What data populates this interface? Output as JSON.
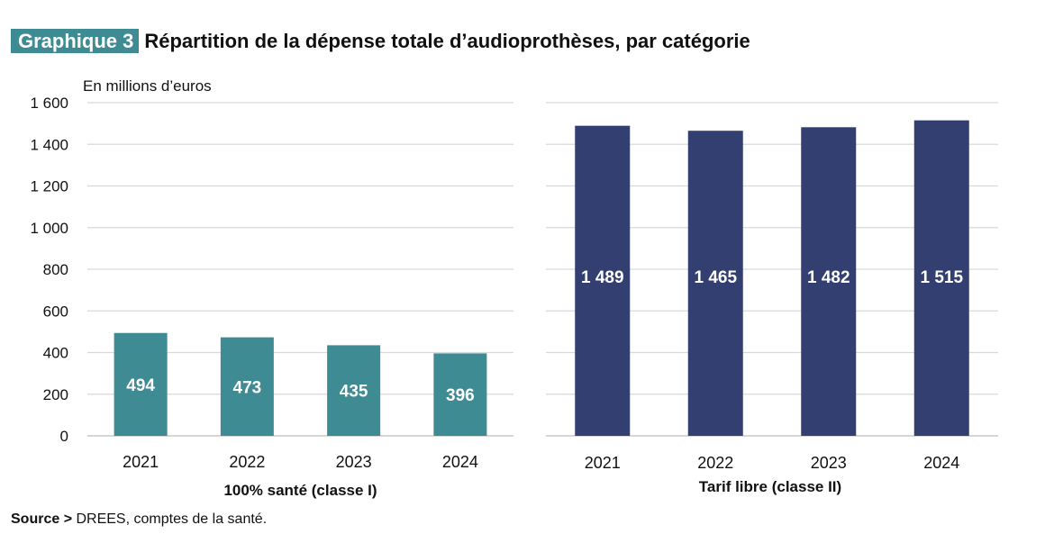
{
  "header": {
    "badge": "Graphique 3",
    "title": "Répartition de la dépense totale d’audioprothèses, par catégorie"
  },
  "source": {
    "label": "Source >",
    "text": " DREES, comptes de la santé."
  },
  "chart_data": [
    {
      "type": "bar",
      "title": "100% santé (classe I)",
      "ylabel": "En millions d’euros",
      "categories": [
        "2021",
        "2022",
        "2023",
        "2024"
      ],
      "values": [
        494,
        473,
        435,
        396
      ],
      "value_labels": [
        "494",
        "473",
        "435",
        "396"
      ],
      "ylim": [
        0,
        1600
      ],
      "yticks": [
        0,
        200,
        400,
        600,
        800,
        1000,
        1200,
        1400,
        1600
      ],
      "ytick_labels": [
        "0",
        "200",
        "400",
        "600",
        "800",
        "1 000",
        "1 200",
        "1 400",
        "1 600"
      ],
      "grid": true,
      "color": "#3f8b93"
    },
    {
      "type": "bar",
      "title": "Tarif libre (classe II)",
      "categories": [
        "2021",
        "2022",
        "2023",
        "2024"
      ],
      "values": [
        1489,
        1465,
        1482,
        1515
      ],
      "value_labels": [
        "1 489",
        "1 465",
        "1 482",
        "1 515"
      ],
      "ylim": [
        0,
        1600
      ],
      "grid": true,
      "color": "#323f70"
    }
  ]
}
